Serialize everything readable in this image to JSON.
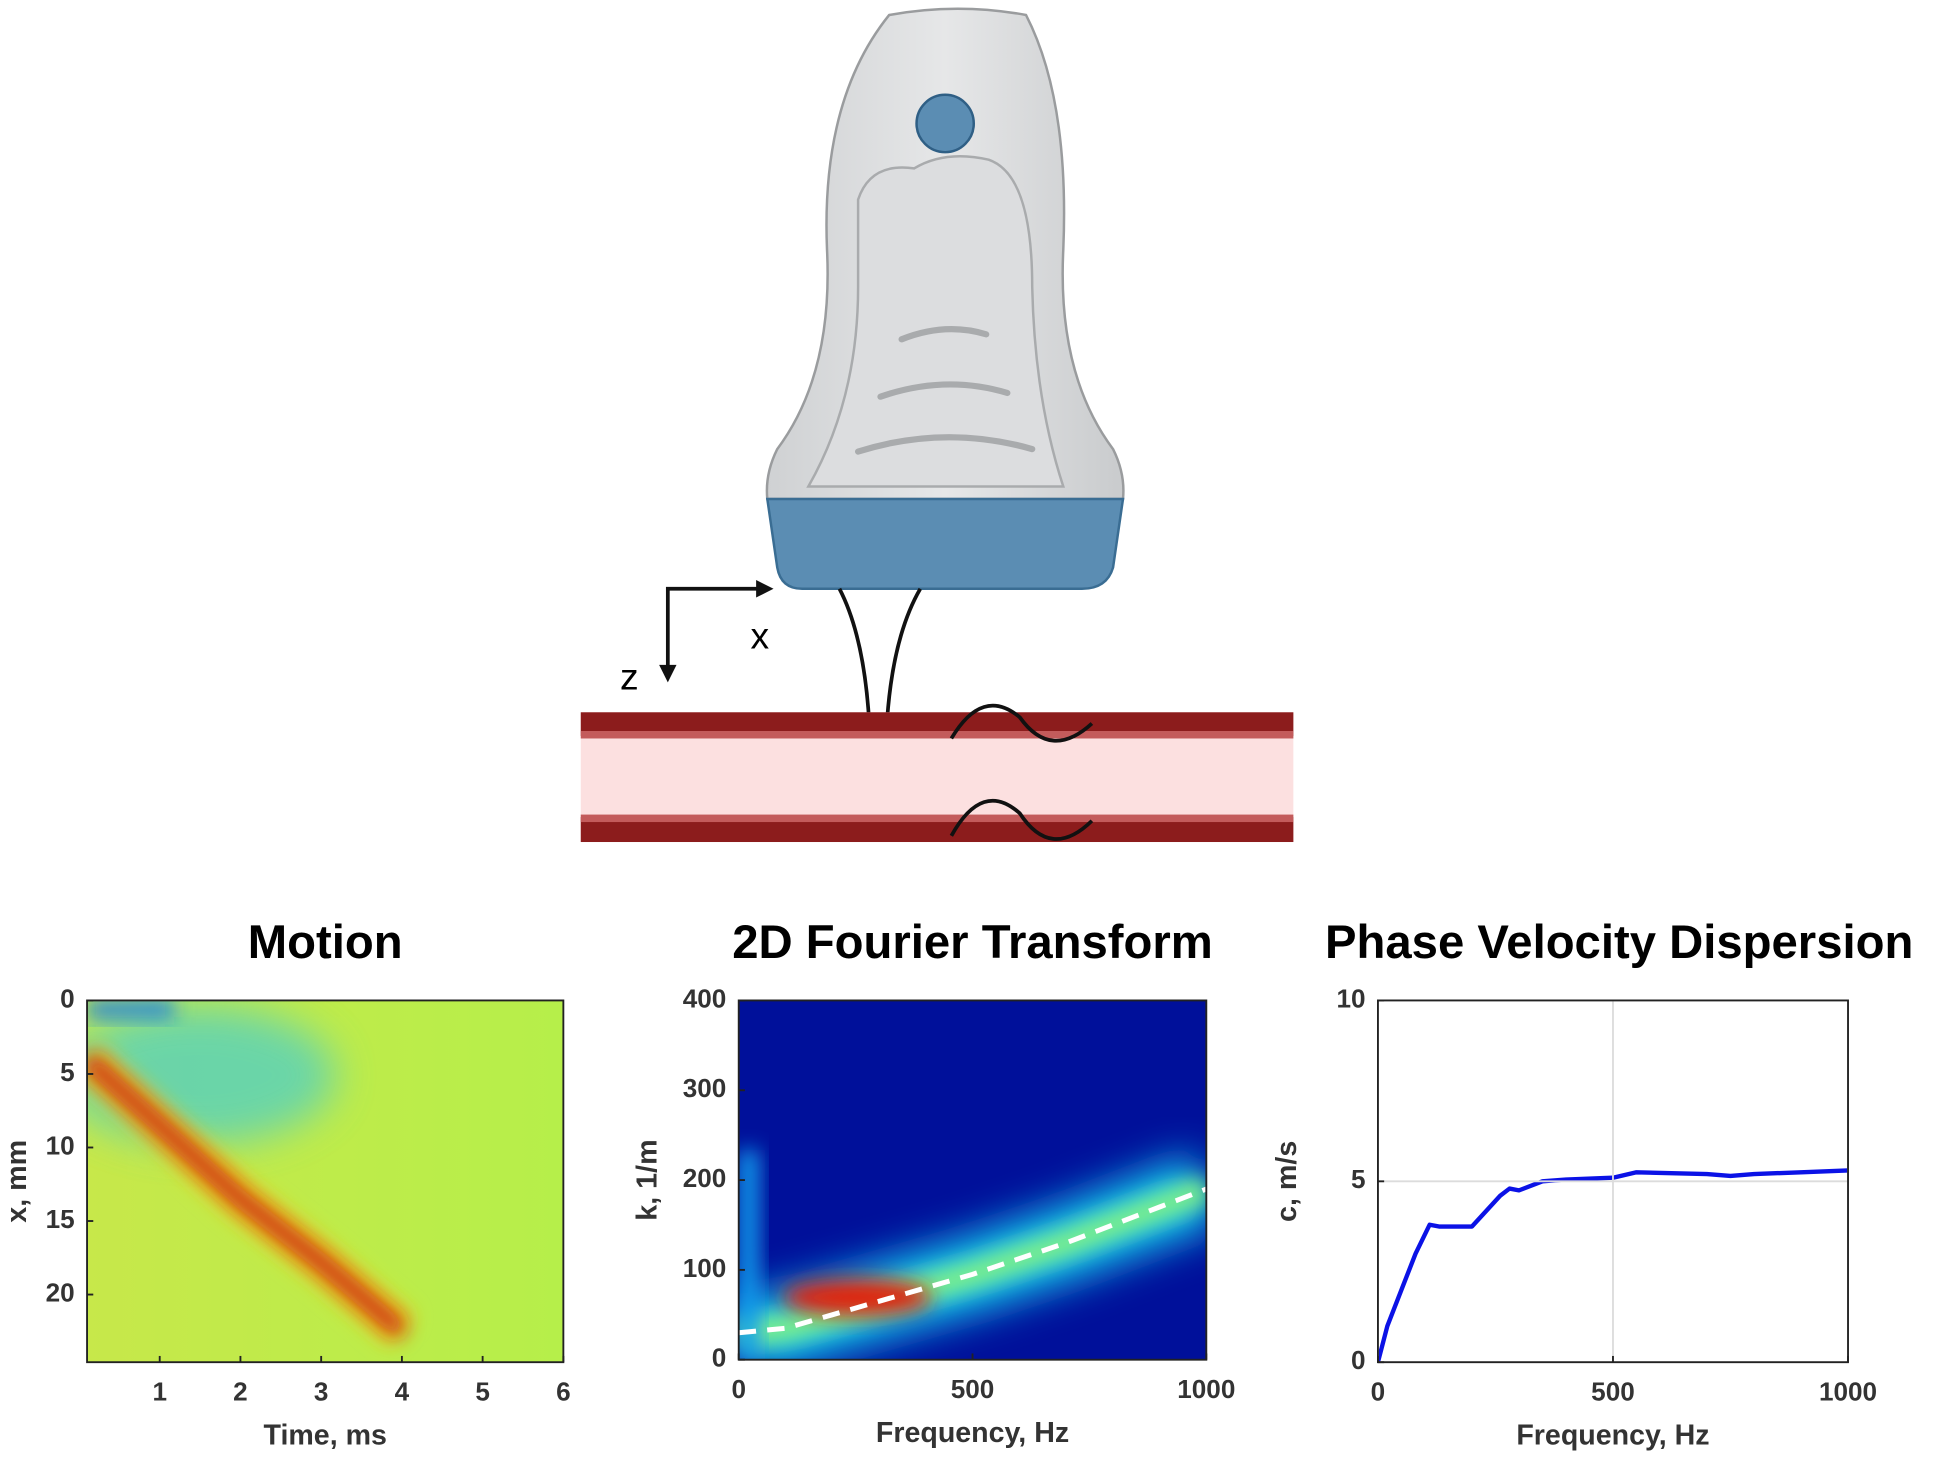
{
  "illustration": {
    "x_axis_label": "x",
    "z_axis_label": "z"
  },
  "chart_data": [
    {
      "type": "heatmap",
      "title": "Motion",
      "xlabel": "Time, ms",
      "ylabel": "x, mm",
      "xlim": [
        0.1,
        6
      ],
      "ylim": [
        0,
        24.6
      ],
      "y_inverted": true,
      "xticks": [
        1,
        2,
        3,
        4,
        5,
        6
      ],
      "yticks": [
        0,
        5,
        10,
        15,
        20
      ],
      "ridge": {
        "color": "#c81e0a",
        "x": [
          0.1,
          1,
          2,
          3,
          4
        ],
        "values": [
          4,
          8.5,
          13.5,
          17.8,
          22.5
        ]
      }
    },
    {
      "type": "heatmap",
      "title": "2D Fourier Transform",
      "xlabel": "Frequency, Hz",
      "ylabel": "k, 1/m",
      "xlim": [
        0,
        1000
      ],
      "ylim": [
        0,
        400
      ],
      "xticks": [
        0,
        500,
        1000
      ],
      "yticks": [
        0,
        100,
        200,
        300,
        400
      ],
      "series": [
        {
          "color": "#ffffff",
          "dashed": true,
          "x": [
            0,
            100,
            200,
            300,
            500,
            700,
            900,
            1000
          ],
          "values": [
            30,
            35,
            50,
            65,
            95,
            130,
            170,
            190
          ]
        }
      ]
    },
    {
      "type": "line",
      "title": "Phase Velocity Dispersion",
      "xlabel": "Frequency, Hz",
      "ylabel": "c, m/s",
      "xlim": [
        0,
        1000
      ],
      "ylim": [
        0,
        10
      ],
      "grid": true,
      "xticks": [
        0,
        500,
        1000
      ],
      "yticks": [
        0,
        5,
        10
      ],
      "series": [
        {
          "color": "#0b12e6",
          "x": [
            0,
            20,
            50,
            80,
            110,
            130,
            200,
            260,
            280,
            300,
            350,
            400,
            500,
            550,
            700,
            750,
            800,
            900,
            1000
          ],
          "values": [
            0,
            1,
            2,
            3,
            3.8,
            3.75,
            3.75,
            4.6,
            4.8,
            4.75,
            5,
            5.05,
            5.1,
            5.25,
            5.2,
            5.15,
            5.2,
            5.25,
            5.3
          ]
        }
      ]
    }
  ]
}
